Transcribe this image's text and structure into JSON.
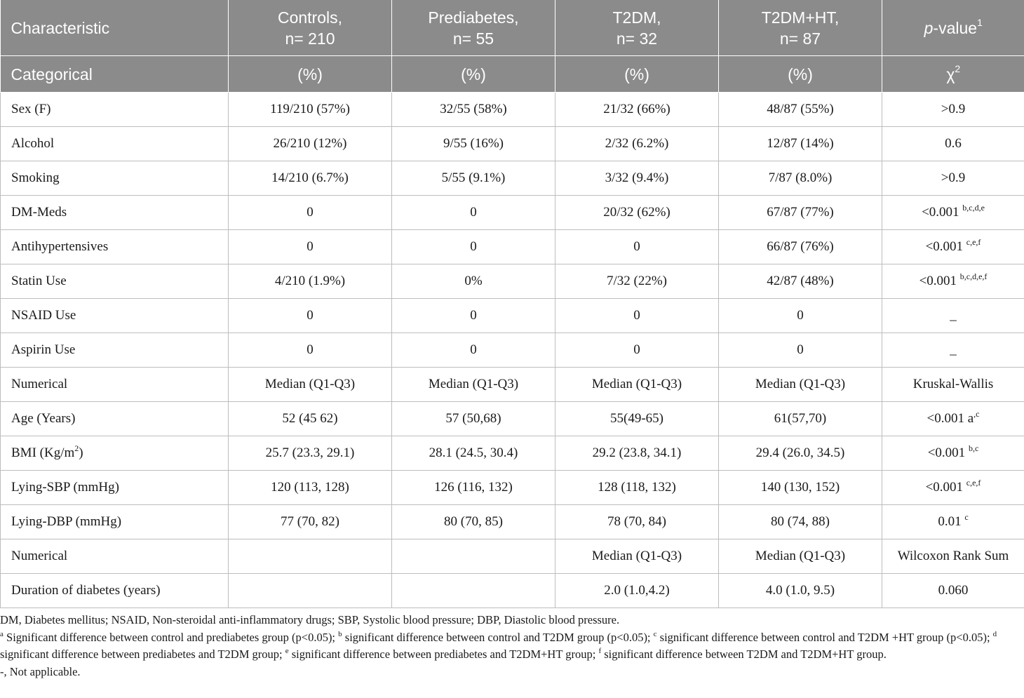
{
  "header": {
    "characteristic": "Characteristic",
    "groups": [
      {
        "name": "Controls,",
        "n": "n= 210"
      },
      {
        "name": "Prediabetes,",
        "n": "n= 55"
      },
      {
        "name": "T2DM,",
        "n": "n= 32"
      },
      {
        "name": "T2DM+HT,",
        "n": "n= 87"
      }
    ],
    "pvalue_italic": "p",
    "pvalue_rest": "-value",
    "pvalue_sup": "1",
    "categorical": "Categorical",
    "percent": [
      "(%)",
      "(%)",
      "(%)",
      "(%)"
    ],
    "chi": "χ",
    "chi_sup": "2"
  },
  "rows": [
    {
      "label": "Sex (F)",
      "cells": [
        "119/210 (57%)",
        "32/55 (58%)",
        "21/32 (66%)",
        "48/87 (55%)"
      ],
      "p": ">0.9",
      "p_sup": ""
    },
    {
      "label": "Alcohol",
      "cells": [
        "26/210 (12%)",
        "9/55 (16%)",
        "2/32 (6.2%)",
        "12/87 (14%)"
      ],
      "p": "0.6",
      "p_sup": ""
    },
    {
      "label": "Smoking",
      "cells": [
        "14/210 (6.7%)",
        "5/55 (9.1%)",
        "3/32 (9.4%)",
        "7/87 (8.0%)"
      ],
      "p": ">0.9",
      "p_sup": ""
    },
    {
      "label": "DM-Meds",
      "cells": [
        "0",
        "0",
        "20/32 (62%)",
        "67/87 (77%)"
      ],
      "p": "<0.001 ",
      "p_sup": "b,c,d,e"
    },
    {
      "label": "Antihypertensives",
      "cells": [
        "0",
        "0",
        "0",
        "66/87 (76%)"
      ],
      "p": "<0.001 ",
      "p_sup": "c,e,f"
    },
    {
      "label": "Statin Use",
      "cells": [
        "4/210 (1.9%)",
        "0%",
        "7/32 (22%)",
        "42/87 (48%)"
      ],
      "p": "<0.001 ",
      "p_sup": "b,c,d,e,f"
    },
    {
      "label": "NSAID Use",
      "cells": [
        "0",
        "0",
        "0",
        "0"
      ],
      "p": "_",
      "p_sup": ""
    },
    {
      "label": "Aspirin Use",
      "cells": [
        "0",
        "0",
        "0",
        "0"
      ],
      "p": "_",
      "p_sup": ""
    },
    {
      "label": "Numerical",
      "cells": [
        "Median (Q1-Q3)",
        "Median (Q1-Q3)",
        "Median (Q1-Q3)",
        "Median (Q1-Q3)"
      ],
      "p": "Kruskal-Wallis",
      "p_sup": ""
    },
    {
      "label": "Age (Years)",
      "cells": [
        "52 (45 62)",
        "57 (50,68)",
        "55(49-65)",
        "61(57,70)"
      ],
      "p": "<0.001 a",
      "p_sup": ",c"
    },
    {
      "label": "BMI (Kg/m",
      "label_sup": "2",
      "label_tail": ")",
      "cells": [
        "25.7 (23.3, 29.1)",
        "28.1 (24.5, 30.4)",
        "29.2 (23.8, 34.1)",
        "29.4 (26.0, 34.5)"
      ],
      "p": "<0.001 ",
      "p_sup": "b,c"
    },
    {
      "label": "Lying-SBP (mmHg)",
      "cells": [
        "120 (113, 128)",
        "126 (116, 132)",
        "128 (118, 132)",
        "140 (130, 152)"
      ],
      "p": "<0.001 ",
      "p_sup": "c,e,f"
    },
    {
      "label": "Lying-DBP (mmHg)",
      "cells": [
        "77 (70, 82)",
        "80 (70, 85)",
        "78 (70, 84)",
        "80 (74, 88)"
      ],
      "p": "0.01 ",
      "p_sup": "c"
    },
    {
      "label": "Numerical",
      "cells": [
        "",
        "",
        "Median (Q1-Q3)",
        "Median (Q1-Q3)"
      ],
      "p": "Wilcoxon Rank Sum",
      "p_sup": ""
    },
    {
      "label": "Duration of diabetes (years)",
      "cells": [
        "",
        "",
        "2.0 (1.0,4.2)",
        "4.0 (1.0, 9.5)"
      ],
      "p": "0.060",
      "p_sup": ""
    }
  ],
  "footnotes": {
    "abbrev": "DM, Diabetes mellitus; NSAID, Non-steroidal anti-inflammatory drugs; SBP, Systolic blood pressure; DBP, Diastolic blood pressure.",
    "sig": [
      {
        "sup": "a",
        "text": " Significant difference between control and prediabetes group (p<0.05); "
      },
      {
        "sup": "b",
        "text": " significant difference between control and T2DM group (p<0.05); "
      },
      {
        "sup": "c",
        "text": " significant difference between control and T2DM +HT group (p<0.05); "
      },
      {
        "sup": "d",
        "text": " significant difference between prediabetes and T2DM group; "
      },
      {
        "sup": "e",
        "text": " significant difference between prediabetes and T2DM+HT group; "
      },
      {
        "sup": "f",
        "text": " significant difference between T2DM and T2DM+HT group."
      }
    ],
    "na": "-, Not applicable."
  }
}
